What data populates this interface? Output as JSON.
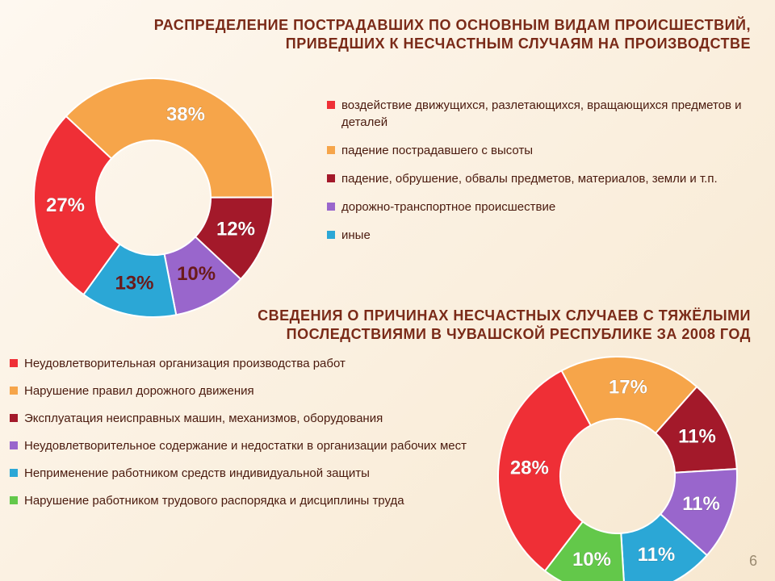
{
  "page_number": "6",
  "title1": "РАСПРЕДЕЛЕНИЕ ПОСТРАДАВШИХ ПО ОСНОВНЫМ ВИДАМ ПРОИСШЕСТВИЙ, ПРИВЕДШИХ К НЕСЧАСТНЫМ СЛУЧАЯМ НА ПРОИЗВОДСТВЕ",
  "title2": "СВЕДЕНИЯ О ПРИЧИНАХ НЕСЧАСТНЫХ СЛУЧАЕВ С ТЯЖЁЛЫМИ ПОСЛЕДСТВИЯМИ В ЧУВАШСКОЙ РЕСПУБЛИКЕ ЗА 2008 ГОД",
  "chart1": {
    "type": "donut",
    "inner_radius_ratio": 0.48,
    "start_angle_deg": 47,
    "background": "#fef8f0",
    "label_fontsize": 24,
    "label_color": "#ffffff",
    "slices": [
      {
        "label": "38%",
        "value": 38,
        "color": "#f6a54a",
        "legend": "падение пострадавшего с высоты",
        "dark_text": false
      },
      {
        "label": "12%",
        "value": 12,
        "color": "#a3192a",
        "legend": "падение, обрушение, обвалы предметов, материалов, земли и т.п.",
        "dark_text": false
      },
      {
        "label": "10%",
        "value": 10,
        "color": "#9966cc",
        "legend": "дорожно-транспортное происшествие",
        "dark_text": true
      },
      {
        "label": "13%",
        "value": 13,
        "color": "#2ba7d6",
        "legend": "иные",
        "dark_text": true
      },
      {
        "label": "27%",
        "value": 27,
        "color": "#ef2f36",
        "legend": "воздействие движущихся, разлетающихся, вращающихся предметов и деталей",
        "dark_text": false
      }
    ],
    "legend_order": [
      4,
      0,
      1,
      2,
      3
    ]
  },
  "chart2": {
    "type": "donut",
    "inner_radius_ratio": 0.48,
    "start_angle_deg": 28,
    "background": "#fef8f0",
    "label_fontsize": 24,
    "label_color": "#ffffff",
    "slices": [
      {
        "label": "17%",
        "value": 17,
        "color": "#f6a54a",
        "legend": "Нарушение правил дорожного движения",
        "dark_text": false
      },
      {
        "label": "11%",
        "value": 11,
        "color": "#a3192a",
        "legend": "Эксплуатация неисправных машин, механизмов, оборудования",
        "dark_text": false
      },
      {
        "label": "11%",
        "value": 11,
        "color": "#9966cc",
        "legend": "Неудовлетворительное содержание и недостатки в организации рабочих мест",
        "dark_text": false
      },
      {
        "label": "11%",
        "value": 11,
        "color": "#2ba7d6",
        "legend": "Неприменение работником средств индивидуальной защиты",
        "dark_text": false
      },
      {
        "label": "10%",
        "value": 10,
        "color": "#63c84a",
        "legend": "Нарушение работником трудового распорядка и дисциплины труда",
        "dark_text": false
      },
      {
        "label": "28%",
        "value": 28,
        "color": "#ef2f36",
        "legend": "Неудовлетворительная организация производства работ",
        "dark_text": false
      }
    ],
    "legend_order": [
      5,
      0,
      1,
      2,
      3,
      4
    ]
  },
  "typography": {
    "title_font_family": "Arial",
    "title_fontsize_pt": 14,
    "title_weight": "bold",
    "title_color": "#7a2a18",
    "legend_fontsize_pt": 11,
    "legend_color": "#4a1a0e"
  }
}
